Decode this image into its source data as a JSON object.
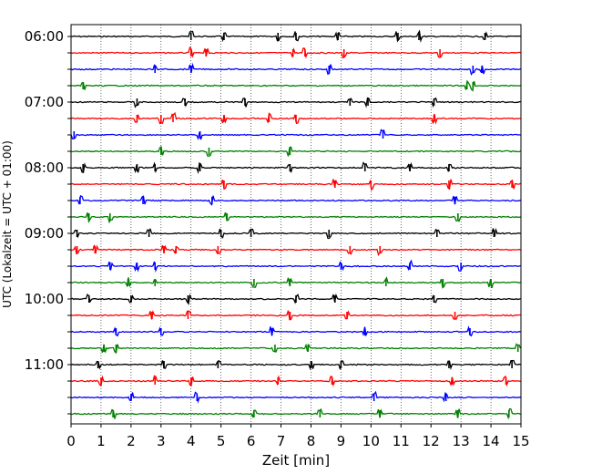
{
  "chart_data": {
    "type": "line",
    "title": "",
    "xlabel": "Zeit  [min]",
    "ylabel": "UTC (Lokalzeit = UTC + 01:00)",
    "xlim": [
      0,
      15
    ],
    "x_ticks": [
      "0",
      "1",
      "2",
      "3",
      "4",
      "5",
      "6",
      "7",
      "8",
      "9",
      "10",
      "11",
      "12",
      "13",
      "14",
      "15"
    ],
    "y_tick_labels": [
      "06:00",
      "07:00",
      "08:00",
      "09:00",
      "10:00",
      "11:00"
    ],
    "grid": "vertical-dotted",
    "trace_count": 24,
    "trace_interval_minutes": 15,
    "start_time": "06:00",
    "colors": [
      "#000000",
      "#ff0000",
      "#0000ff",
      "#008000"
    ],
    "spikes": [
      [
        4.0,
        5.1,
        6.9,
        7.5,
        8.9,
        10.9,
        11.6,
        13.8
      ],
      [
        4.0,
        4.5,
        7.4,
        7.8,
        9.1,
        12.3
      ],
      [
        2.8,
        4.0,
        8.6,
        13.4,
        13.7
      ],
      [
        0.4,
        13.2,
        13.4
      ],
      [
        2.2,
        3.8,
        5.8,
        9.3,
        9.9,
        12.1
      ],
      [
        2.2,
        3.0,
        3.4,
        5.1,
        6.6,
        7.5,
        12.1
      ],
      [
        0.1,
        4.3,
        10.4
      ],
      [
        3.0,
        4.6,
        7.3
      ],
      [
        0.4,
        2.2,
        2.8,
        4.3,
        7.3,
        9.8,
        11.3,
        12.6
      ],
      [
        5.1,
        8.8,
        10.0,
        12.6,
        14.7
      ],
      [
        0.3,
        2.4,
        4.7,
        12.8
      ],
      [
        0.6,
        1.3,
        5.2,
        12.9
      ],
      [
        0.2,
        2.6,
        5.0,
        6.0,
        8.6,
        12.2,
        14.1
      ],
      [
        0.2,
        0.8,
        3.1,
        3.5,
        4.9,
        9.3,
        10.3
      ],
      [
        1.3,
        2.2,
        2.8,
        9.0,
        11.3,
        13.0
      ],
      [
        1.9,
        2.8,
        6.1,
        7.3,
        10.5,
        12.4,
        14.0
      ],
      [
        0.6,
        2.0,
        3.9,
        7.5,
        8.8,
        12.1
      ],
      [
        2.7,
        3.9,
        7.3,
        9.2,
        12.8
      ],
      [
        1.5,
        3.0,
        6.7,
        9.8,
        13.3
      ],
      [
        1.1,
        1.5,
        6.8,
        7.9,
        14.9
      ],
      [
        0.9,
        3.1,
        4.9,
        8.0,
        9.0,
        12.6,
        14.7
      ],
      [
        1.0,
        2.8,
        4.0,
        6.9,
        8.7,
        12.7,
        14.5
      ],
      [
        2.0,
        4.2,
        10.1,
        12.5
      ],
      [
        1.4,
        6.1,
        8.3,
        10.3,
        12.9,
        14.6
      ]
    ]
  }
}
